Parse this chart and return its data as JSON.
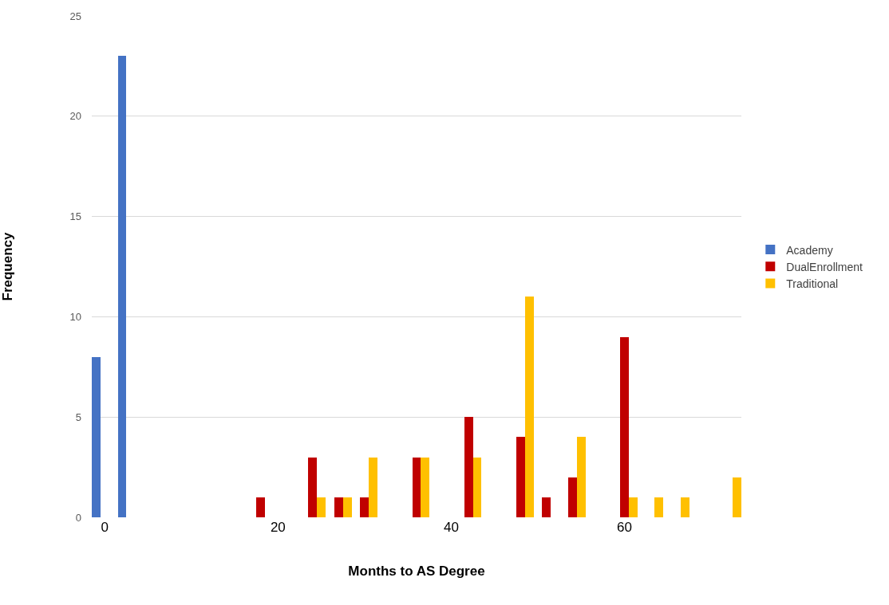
{
  "chart_data": {
    "type": "bar",
    "xlabel": "Months to AS Degree",
    "ylabel": "Frequency",
    "series": [
      {
        "name": "Academy",
        "color": "#4472c4",
        "x": [
          0,
          3
        ],
        "values": [
          8,
          23
        ]
      },
      {
        "name": "DualEnrollment",
        "color": "#c00000",
        "x": [
          18,
          24,
          27,
          30,
          36,
          42,
          48,
          51,
          54,
          60
        ],
        "values": [
          1,
          3,
          1,
          1,
          3,
          5,
          4,
          1,
          2,
          9
        ]
      },
      {
        "name": "Traditional",
        "color": "#ffc000",
        "x": [
          24,
          27,
          30,
          36,
          42,
          48,
          54,
          60,
          63,
          66,
          72
        ],
        "values": [
          1,
          1,
          3,
          3,
          3,
          11,
          4,
          1,
          1,
          1,
          2
        ]
      }
    ],
    "xlim": [
      -1.5,
      73.5
    ],
    "xticks": [
      0,
      20,
      40,
      60
    ],
    "ylim": [
      0,
      25
    ],
    "yticks": [
      0,
      5,
      10,
      15,
      20,
      25
    ],
    "grid": "y",
    "legend": "right"
  }
}
